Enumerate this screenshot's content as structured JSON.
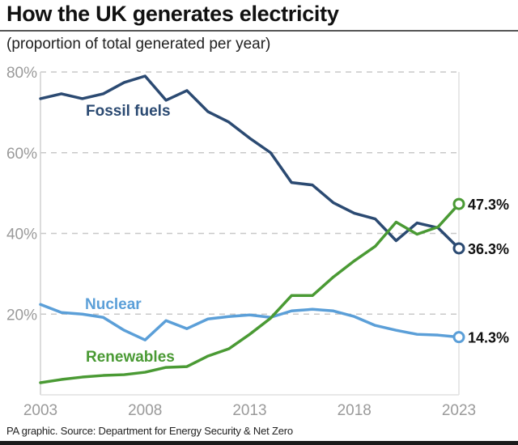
{
  "header": {
    "title": "How the UK generates electricity",
    "subtitle": "(proportion of total generated per year)"
  },
  "footer": {
    "source": "PA graphic. Source: Department for Energy Security & Net Zero"
  },
  "chart_data": {
    "type": "line",
    "title": "How the UK generates electricity",
    "subtitle": "(proportion of total generated per year)",
    "xlabel": "",
    "ylabel": "",
    "x": [
      2003,
      2004,
      2005,
      2006,
      2007,
      2008,
      2009,
      2010,
      2011,
      2012,
      2013,
      2014,
      2015,
      2016,
      2017,
      2018,
      2019,
      2020,
      2021,
      2022,
      2023
    ],
    "xlim": [
      2003,
      2023
    ],
    "ylim": [
      0,
      80
    ],
    "x_ticks": [
      2003,
      2008,
      2013,
      2018,
      2023
    ],
    "x_tick_labels": [
      "2003",
      "2008",
      "2013",
      "2018",
      "2023"
    ],
    "y_ticks": [
      20,
      40,
      60,
      80
    ],
    "y_tick_labels": [
      "20%",
      "40%",
      "60%",
      "80%"
    ],
    "grid": "horizontal-dashed",
    "legend": "inline-labels",
    "series": [
      {
        "name": "Fossil fuels",
        "color": "#2b4a72",
        "values": [
          73.4,
          74.6,
          73.4,
          74.6,
          77.4,
          79.0,
          73.0,
          75.4,
          70.2,
          67.6,
          63.6,
          60.0,
          52.6,
          52.0,
          47.6,
          45.0,
          43.6,
          38.2,
          42.6,
          41.4,
          36.3
        ],
        "end_label": "36.3%"
      },
      {
        "name": "Nuclear",
        "color": "#5b9fd8",
        "values": [
          22.4,
          20.4,
          20.0,
          19.2,
          16.0,
          13.6,
          18.4,
          16.4,
          18.8,
          19.4,
          19.8,
          19.2,
          20.8,
          21.2,
          20.8,
          19.4,
          17.2,
          16.0,
          15.0,
          14.8,
          14.3
        ],
        "end_label": "14.3%"
      },
      {
        "name": "Renewables",
        "color": "#4a9a34",
        "values": [
          3.0,
          3.8,
          4.4,
          4.8,
          5.0,
          5.6,
          6.8,
          7.0,
          9.6,
          11.4,
          15.0,
          19.0,
          24.6,
          24.6,
          29.2,
          33.2,
          36.8,
          42.8,
          39.8,
          41.6,
          47.3
        ],
        "end_label": "47.3%"
      }
    ]
  }
}
